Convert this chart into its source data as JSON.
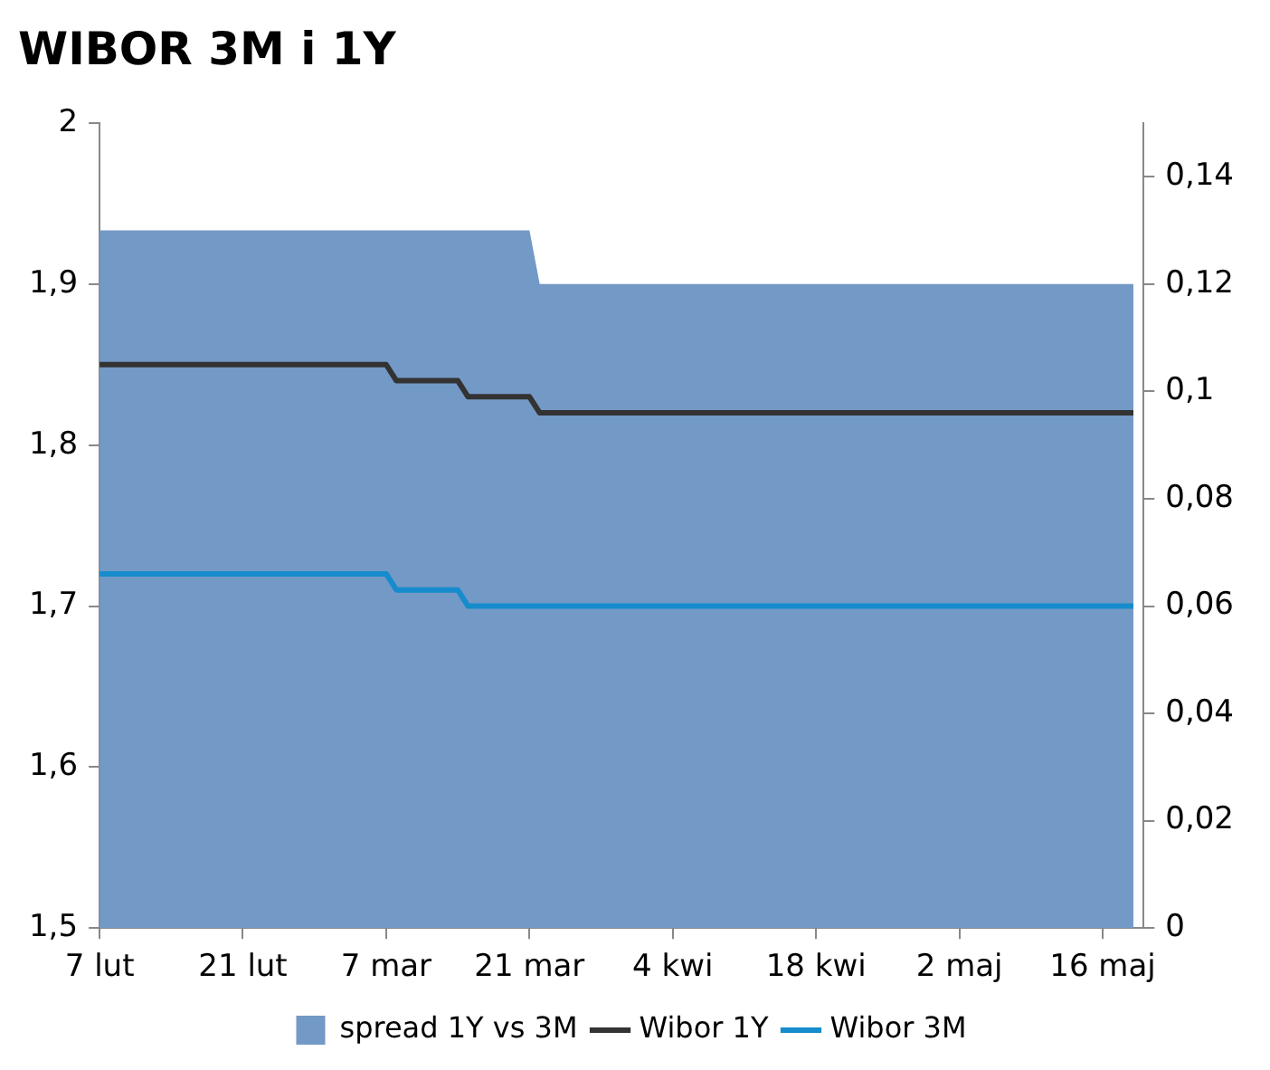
{
  "chart_data": {
    "type": "line",
    "title": "WIBOR 3M i 1Y",
    "series": [
      {
        "name": "spread 1Y vs 3M",
        "type": "area",
        "axis": "y2",
        "color": "#7399c6",
        "x": [
          "--02-07",
          "--03-21",
          "--03-22",
          "--05-19"
        ],
        "values": [
          0.13,
          0.13,
          0.12,
          0.12
        ]
      },
      {
        "name": "Wibor 1Y",
        "color": "#333333",
        "x": [
          "--02-07",
          "--03-07",
          "--03-08",
          "--03-14",
          "--03-15",
          "--03-21",
          "--03-22",
          "--05-19"
        ],
        "values": [
          1.85,
          1.85,
          1.84,
          1.84,
          1.83,
          1.83,
          1.82,
          1.82
        ]
      },
      {
        "name": "Wibor 3M",
        "color": "#168ccc",
        "x": [
          "--02-07",
          "--03-07",
          "--03-08",
          "--03-14",
          "--03-15",
          "--03-21",
          "--03-22",
          "--05-19"
        ],
        "values": [
          1.72,
          1.72,
          1.71,
          1.71,
          1.7,
          1.7,
          1.7,
          1.7
        ]
      }
    ],
    "xlim": [
      "--02-07",
      "--05-20"
    ],
    "xticks": [
      {
        "value": "--02-07",
        "label": "7 lut"
      },
      {
        "value": "--02-21",
        "label": "21 lut"
      },
      {
        "value": "--03-07",
        "label": "7 mar"
      },
      {
        "value": "--03-21",
        "label": "21 mar"
      },
      {
        "value": "--04-04",
        "label": "4 kwi"
      },
      {
        "value": "--04-18",
        "label": "18 kwi"
      },
      {
        "value": "--05-02",
        "label": "2 maj"
      },
      {
        "value": "--05-16",
        "label": "16 maj"
      }
    ],
    "ylim": [
      1.5,
      2
    ],
    "yticks": [
      {
        "value": 1.5,
        "label": "1,5"
      },
      {
        "value": 1.6,
        "label": "1,6"
      },
      {
        "value": 1.7,
        "label": "1,7"
      },
      {
        "value": 1.8,
        "label": "1,8"
      },
      {
        "value": 1.9,
        "label": "1,9"
      },
      2
    ],
    "y2lim": [
      0,
      0.15
    ],
    "y2ticks": [
      0,
      {
        "value": 0.02,
        "label": "0,02"
      },
      {
        "value": 0.04,
        "label": "0,04"
      },
      {
        "value": 0.06,
        "label": "0,06"
      },
      {
        "value": 0.08,
        "label": "0,08"
      },
      {
        "value": 0.1,
        "label": "0,1"
      },
      {
        "value": 0.12,
        "label": "0,12"
      },
      {
        "value": 0.14,
        "label": "0,14"
      }
    ],
    "grid": false,
    "legend": "bottom",
    "marker": "none",
    "line_style": "solid"
  }
}
